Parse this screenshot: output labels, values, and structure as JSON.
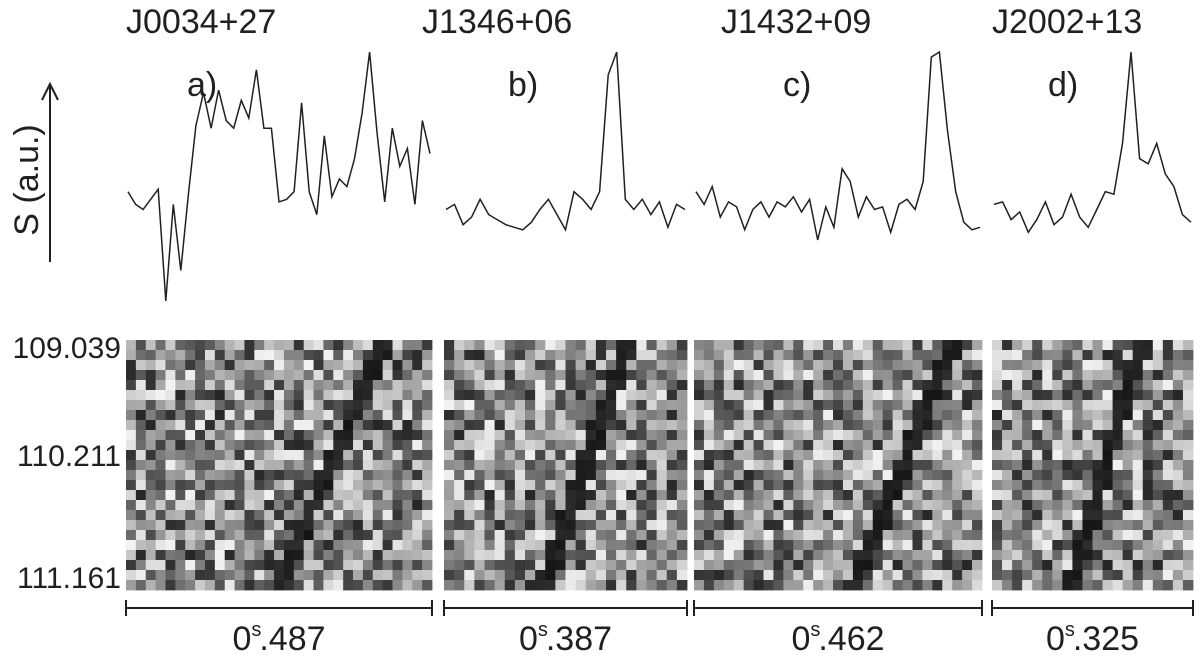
{
  "chart_data": {
    "type": "line",
    "ylabel": "S (a.u.)",
    "frequency_ticks": [
      "109.039",
      "110.211",
      "111.161"
    ],
    "panels": [
      {
        "name": "J0034+27",
        "letter": "a)",
        "period": {
          "whole": "0",
          "unit": "s",
          "frac": ".487"
        },
        "profile": [
          0.45,
          0.4,
          0.38,
          0.42,
          0.46,
          0.02,
          0.4,
          0.14,
          0.44,
          0.71,
          0.84,
          0.7,
          0.85,
          0.73,
          0.7,
          0.81,
          0.74,
          0.93,
          0.7,
          0.7,
          0.41,
          0.42,
          0.45,
          0.8,
          0.45,
          0.36,
          0.67,
          0.43,
          0.5,
          0.47,
          0.58,
          0.76,
          1.0,
          0.68,
          0.41,
          0.7,
          0.55,
          0.62,
          0.4,
          0.73,
          0.6
        ]
      },
      {
        "name": "J1346+06",
        "letter": "b)",
        "period": {
          "whole": "0",
          "unit": "s",
          "frac": ".387"
        },
        "profile": [
          0.38,
          0.4,
          0.32,
          0.35,
          0.42,
          0.36,
          0.34,
          0.32,
          0.31,
          0.3,
          0.33,
          0.38,
          0.42,
          0.36,
          0.3,
          0.45,
          0.42,
          0.38,
          0.45,
          0.91,
          1.0,
          0.42,
          0.38,
          0.42,
          0.36,
          0.41,
          0.31,
          0.4,
          0.38
        ]
      },
      {
        "name": "J1432+09",
        "letter": "c)",
        "period": {
          "whole": "0",
          "unit": "s",
          "frac": ".462"
        },
        "profile": [
          0.45,
          0.4,
          0.47,
          0.35,
          0.41,
          0.39,
          0.3,
          0.38,
          0.41,
          0.35,
          0.41,
          0.39,
          0.43,
          0.37,
          0.42,
          0.26,
          0.39,
          0.31,
          0.54,
          0.49,
          0.35,
          0.43,
          0.38,
          0.39,
          0.29,
          0.4,
          0.42,
          0.38,
          0.49,
          0.98,
          1.0,
          0.69,
          0.45,
          0.33,
          0.3,
          0.31
        ]
      },
      {
        "name": "J2002+13",
        "letter": "d)",
        "period": {
          "whole": "0",
          "unit": "s",
          "frac": ".325"
        },
        "profile": [
          0.4,
          0.41,
          0.34,
          0.37,
          0.29,
          0.34,
          0.41,
          0.32,
          0.35,
          0.44,
          0.35,
          0.31,
          0.38,
          0.45,
          0.44,
          0.64,
          1.0,
          0.58,
          0.56,
          0.64,
          0.52,
          0.47,
          0.36,
          0.33
        ]
      }
    ]
  },
  "colors": {
    "ink": "#231f20",
    "background": "#ffffff"
  }
}
